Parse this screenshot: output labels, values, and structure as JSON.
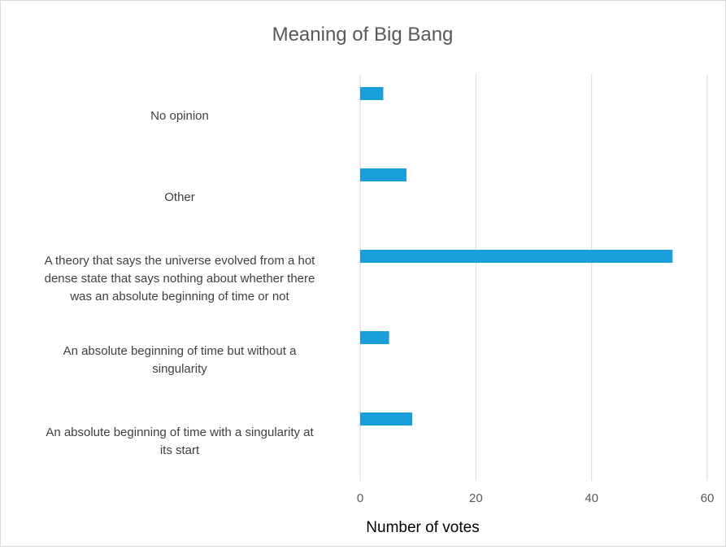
{
  "chart_data": {
    "type": "bar",
    "orientation": "horizontal",
    "title": "Meaning of Big Bang",
    "xlabel": "Number of votes",
    "ylabel": "",
    "xlim": [
      0,
      60
    ],
    "x_ticks": [
      0,
      20,
      40,
      60
    ],
    "grid": true,
    "legend": "none",
    "bar_color": "#1a9ed9",
    "categories": [
      {
        "label_lines": [
          "No opinion"
        ],
        "value": 4
      },
      {
        "label_lines": [
          "Other"
        ],
        "value": 8
      },
      {
        "label_lines": [
          "A theory that says the universe evolved from a hot",
          "dense state that says nothing about whether there",
          "was an absolute beginning of time or not"
        ],
        "value": 54
      },
      {
        "label_lines": [
          "An absolute beginning of time but without a",
          "singularity"
        ],
        "value": 5
      },
      {
        "label_lines": [
          "An absolute beginning of time with a singularity at",
          "its start"
        ],
        "value": 9
      }
    ]
  }
}
